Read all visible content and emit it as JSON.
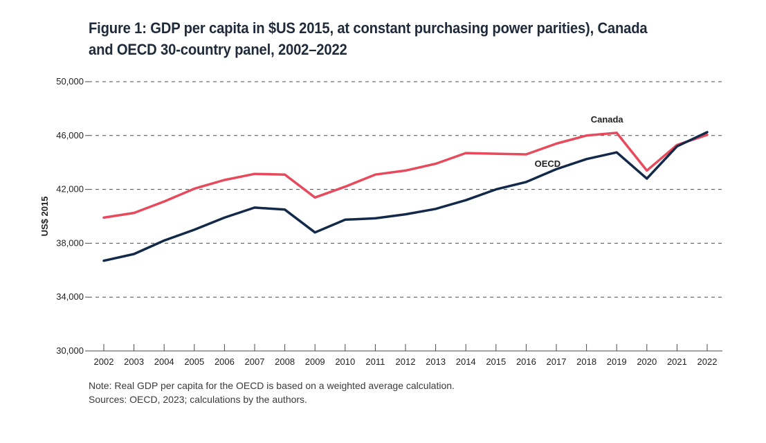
{
  "chart_data": {
    "type": "line",
    "title": "Figure 1: GDP per capita in $US 2015, at constant purchasing power parities), Canada\nand OECD 30-country panel, 2002–2022",
    "xlabel": "",
    "ylabel": "US$ 2015",
    "ylim": [
      30000,
      50000
    ],
    "yticks": [
      30000,
      34000,
      38000,
      42000,
      46000,
      50000
    ],
    "ytick_labels": [
      "30,000",
      "34,000",
      "38,000",
      "42,000",
      "46,000",
      "50,000"
    ],
    "grid": true,
    "categories": [
      "2002",
      "2003",
      "2004",
      "2005",
      "2006",
      "2007",
      "2008",
      "2009",
      "2010",
      "2011",
      "2012",
      "2013",
      "2014",
      "2015",
      "2016",
      "2017",
      "2018",
      "2019",
      "2020",
      "2021",
      "2022"
    ],
    "series": [
      {
        "name": "Canada",
        "color": "#e64a5c",
        "values": [
          39900,
          40250,
          41100,
          42050,
          42700,
          43150,
          43100,
          41400,
          42200,
          43100,
          43400,
          43900,
          44700,
          44650,
          44600,
          45400,
          46000,
          46200,
          43400,
          45300,
          46050
        ]
      },
      {
        "name": "OECD",
        "color": "#12294a",
        "values": [
          36700,
          37200,
          38200,
          39000,
          39900,
          40650,
          40500,
          38800,
          39750,
          39850,
          40150,
          40550,
          41200,
          42000,
          42550,
          43500,
          44250,
          44750,
          42800,
          45200,
          46250
        ]
      }
    ]
  },
  "note": {
    "line1": "Note: Real GDP per capita for the OECD is based on a weighted average calculation.",
    "line2": "Sources: OECD, 2023; calculations by the authors."
  }
}
